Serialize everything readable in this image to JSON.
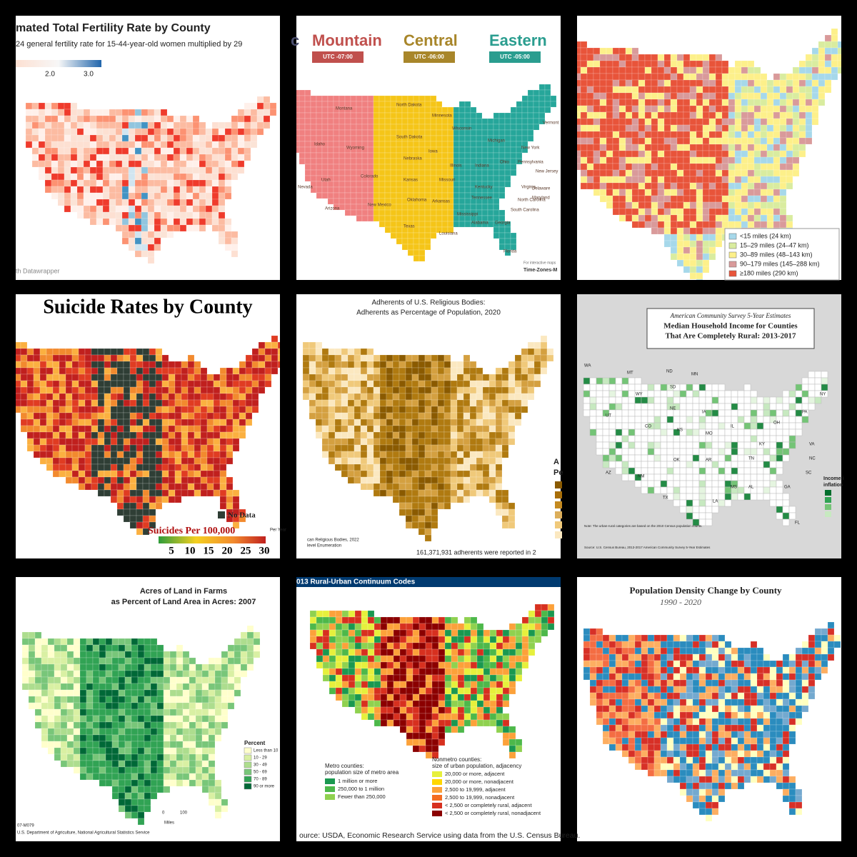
{
  "panels": [
    {
      "title": "mated Total Fertility Rate by County",
      "subtitle": "24 general fertility rate for 15-44-year-old women multiplied by 29",
      "scale": [
        "2.0",
        "3.0"
      ],
      "credit": "th Datawrapper"
    },
    {
      "zones": [
        "c",
        "Mountain",
        "Central",
        "Eastern"
      ],
      "offsets": [
        "UTC -07:00",
        "UTC -06:00",
        "UTC -05:00"
      ],
      "states": [
        "Montana",
        "Idaho",
        "Wyoming",
        "Utah",
        "Colorado",
        "Arizona",
        "New Mexico",
        "Nevada",
        "North Dakota",
        "South Dakota",
        "Nebraska",
        "Kansas",
        "Oklahoma",
        "Texas",
        "Minnesota",
        "Iowa",
        "Missouri",
        "Arkansas",
        "Louisiana",
        "Wisconsin",
        "Illinois",
        "Mississippi",
        "Tennessee",
        "Kentucky",
        "Alabama",
        "Michigan",
        "Indiana",
        "Ohio",
        "Georgia",
        "Florida",
        "Pennsylvania",
        "New York",
        "Vermont",
        "Virginia",
        "North Carolina",
        "South Carolina",
        "Maryland",
        "Delaware",
        "New Jersey"
      ],
      "credit": [
        "For interactive maps",
        "Time-Zones-M"
      ]
    },
    {
      "legend": [
        {
          "label": "<15 miles (24 km)",
          "color": "#a6d8ea"
        },
        {
          "label": "15–29 miles (24–47 km)",
          "color": "#d9ec9f"
        },
        {
          "label": "30–89 miles (48–143 km)",
          "color": "#fdf08a"
        },
        {
          "label": "90–179 miles (145–288 km)",
          "color": "#d99a9a"
        },
        {
          "label": "≥180 miles (290 km)",
          "color": "#e8543a"
        }
      ]
    },
    {
      "title": "Suicide Rates by County",
      "no_data": "No Data",
      "scale_title": "Suicides Per 100,000",
      "scale_unit": "Per Year",
      "scale": [
        "5",
        "10",
        "15",
        "20",
        "25",
        "30"
      ]
    },
    {
      "title": [
        "Adherents of U.S. Religious Bodies:",
        "Adherents as Percentage of Population, 2020"
      ],
      "legend_title": [
        "A",
        "Pe"
      ],
      "sources": [
        "can Religious Bodies, 2022",
        "level Enumeration"
      ],
      "total": "161,371,931 adherents were reported in 2"
    },
    {
      "title": [
        "American Community Survey 5-Year Estimates",
        "Median Household Income for Counties",
        "That Are Completely Rural: 2013-2017"
      ],
      "legend_title": [
        "Income i",
        "inflation"
      ],
      "states": [
        "WA",
        "MT",
        "ND",
        "MN",
        "WY",
        "SD",
        "UT",
        "NE",
        "IA",
        "CO",
        "KS",
        "MO",
        "IL",
        "AZ",
        "NM",
        "OK",
        "AR",
        "TX",
        "LA",
        "MS",
        "AL",
        "TN",
        "KY",
        "GA",
        "SC",
        "NC",
        "VA",
        "OH",
        "PA",
        "NY",
        "FL"
      ],
      "note": "Note: The urban-rural categories are based on the 2010 Census population counts.",
      "source": "Source: U.S. Census Bureau, 2013-2017 American Community Survey 5-Year Estimates"
    },
    {
      "title": [
        "Acres of Land in Farms",
        "as Percent of Land Area in Acres:  2007"
      ],
      "legend_title": "Percent",
      "legend": [
        {
          "label": "Less than 10",
          "color": "#ffffcc"
        },
        {
          "label": "10 - 29",
          "color": "#d9f0a3"
        },
        {
          "label": "30 - 49",
          "color": "#addd8e"
        },
        {
          "label": "50 - 69",
          "color": "#78c679"
        },
        {
          "label": "70 - 89",
          "color": "#31a354"
        },
        {
          "label": "90 or more",
          "color": "#006837"
        }
      ],
      "scale_bar": [
        "0",
        "100",
        "Miles"
      ],
      "code": "07-M079",
      "source": "U.S. Department of Agriculture, National Agricultural Statistics Service"
    },
    {
      "title": "013 Rural-Urban Continuum Codes",
      "metro_title": [
        "Metro counties:",
        "population size of metro area"
      ],
      "metro": [
        {
          "label": "1 million or more",
          "color": "#1a9850"
        },
        {
          "label": "250,000 to 1 million",
          "color": "#4db84a"
        },
        {
          "label": "Fewer than 250,000",
          "color": "#8fd14f"
        }
      ],
      "nonmetro_title": [
        "Nonmetro counties:",
        "size of urban population, adjacency"
      ],
      "nonmetro": [
        {
          "label": "20,000 or more, adjacent",
          "color": "#e6f03c"
        },
        {
          "label": "20,000 or more, nonadjacent",
          "color": "#ffd700"
        },
        {
          "label": "2,500 to 19,999, adjacent",
          "color": "#fca13a"
        },
        {
          "label": "2,500 to 19,999, nonadjacent",
          "color": "#f46d22"
        },
        {
          "label": "< 2,500 or completely rural, adjacent",
          "color": "#d7301f"
        },
        {
          "label": "< 2,500 or completely rural, nonadjacent",
          "color": "#8b0000"
        }
      ],
      "source": "ource: USDA, Economic Research Service using data from the U.S. Census Bureau."
    },
    {
      "title": "Population Density Change by County",
      "subtitle": "1990 - 2020"
    }
  ]
}
